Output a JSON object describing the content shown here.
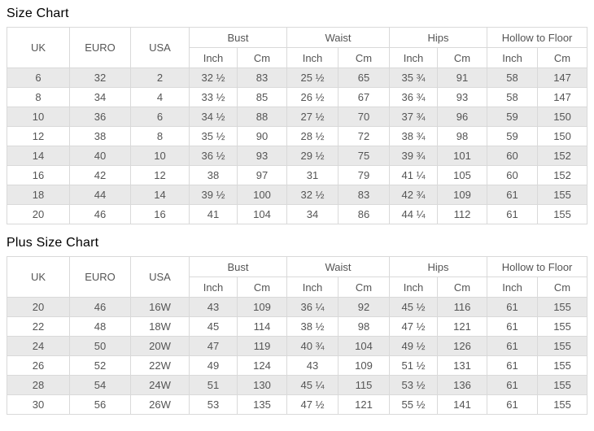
{
  "colors": {
    "stripe": "#e9e9e9",
    "border": "#d9d9d9",
    "cell_text": "#555555",
    "title_text": "#000000",
    "background": "#ffffff"
  },
  "columns": {
    "uk": "UK",
    "euro": "EURO",
    "usa": "USA",
    "bust": "Bust",
    "waist": "Waist",
    "hips": "Hips",
    "hollow_to_floor": "Hollow to Floor",
    "inch": "Inch",
    "cm": "Cm"
  },
  "tables": [
    {
      "title": "Size Chart",
      "rows": [
        [
          "6",
          "32",
          "2",
          "32 ½",
          "83",
          "25 ½",
          "65",
          "35 ¾",
          "91",
          "58",
          "147"
        ],
        [
          "8",
          "34",
          "4",
          "33 ½",
          "85",
          "26 ½",
          "67",
          "36 ¾",
          "93",
          "58",
          "147"
        ],
        [
          "10",
          "36",
          "6",
          "34 ½",
          "88",
          "27 ½",
          "70",
          "37 ¾",
          "96",
          "59",
          "150"
        ],
        [
          "12",
          "38",
          "8",
          "35 ½",
          "90",
          "28 ½",
          "72",
          "38 ¾",
          "98",
          "59",
          "150"
        ],
        [
          "14",
          "40",
          "10",
          "36 ½",
          "93",
          "29 ½",
          "75",
          "39 ¾",
          "101",
          "60",
          "152"
        ],
        [
          "16",
          "42",
          "12",
          "38",
          "97",
          "31",
          "79",
          "41 ¼",
          "105",
          "60",
          "152"
        ],
        [
          "18",
          "44",
          "14",
          "39 ½",
          "100",
          "32 ½",
          "83",
          "42 ¾",
          "109",
          "61",
          "155"
        ],
        [
          "20",
          "46",
          "16",
          "41",
          "104",
          "34",
          "86",
          "44 ¼",
          "112",
          "61",
          "155"
        ]
      ]
    },
    {
      "title": "Plus Size Chart",
      "rows": [
        [
          "20",
          "46",
          "16W",
          "43",
          "109",
          "36 ¼",
          "92",
          "45 ½",
          "116",
          "61",
          "155"
        ],
        [
          "22",
          "48",
          "18W",
          "45",
          "114",
          "38 ½",
          "98",
          "47 ½",
          "121",
          "61",
          "155"
        ],
        [
          "24",
          "50",
          "20W",
          "47",
          "119",
          "40 ¾",
          "104",
          "49 ½",
          "126",
          "61",
          "155"
        ],
        [
          "26",
          "52",
          "22W",
          "49",
          "124",
          "43",
          "109",
          "51 ½",
          "131",
          "61",
          "155"
        ],
        [
          "28",
          "54",
          "24W",
          "51",
          "130",
          "45 ¼",
          "115",
          "53 ½",
          "136",
          "61",
          "155"
        ],
        [
          "30",
          "56",
          "26W",
          "53",
          "135",
          "47 ½",
          "121",
          "55 ½",
          "141",
          "61",
          "155"
        ]
      ]
    }
  ]
}
